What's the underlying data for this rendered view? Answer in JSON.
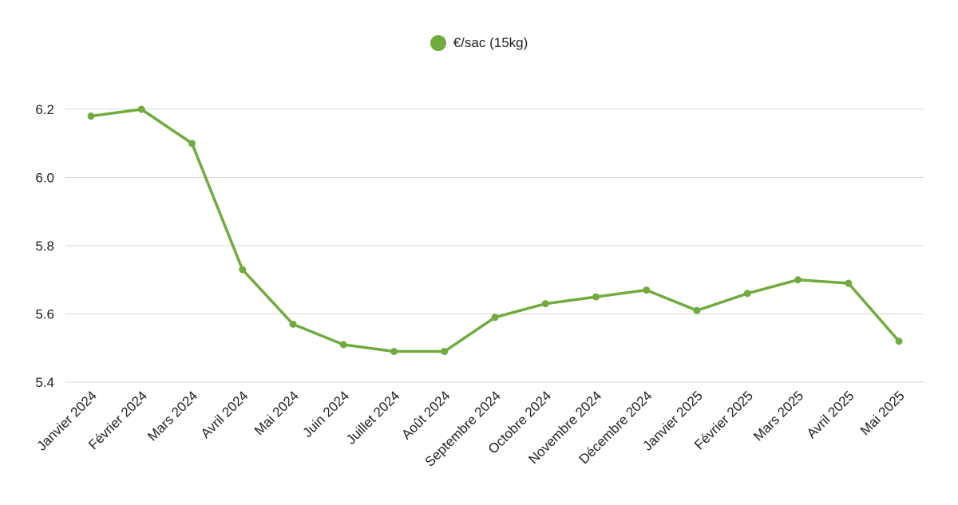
{
  "chart_data": {
    "type": "line",
    "title": "",
    "xlabel": "",
    "ylabel": "",
    "categories": [
      "Janvier 2024",
      "Février 2024",
      "Mars 2024",
      "Avril 2024",
      "Mai 2024",
      "Juin 2024",
      "Juillet 2024",
      "Août 2024",
      "Septembre 2024",
      "Octobre 2024",
      "Novembre 2024",
      "Décembre 2024",
      "Janvier 2025",
      "Février 2025",
      "Mars 2025",
      "Avril 2025",
      "Mai 2025"
    ],
    "series": [
      {
        "name": "€/sac (15kg)",
        "color": "#70ab3d",
        "values": [
          6.18,
          6.2,
          6.1,
          5.73,
          5.57,
          5.51,
          5.49,
          5.49,
          5.59,
          5.63,
          5.65,
          5.67,
          5.61,
          5.66,
          5.7,
          5.69,
          5.52
        ]
      }
    ],
    "ylim": [
      5.4,
      6.3
    ],
    "yticks": [
      "5.4",
      "5.6",
      "5.8",
      "6.0",
      "6.2"
    ],
    "grid": true,
    "legend_position": "top-center"
  }
}
